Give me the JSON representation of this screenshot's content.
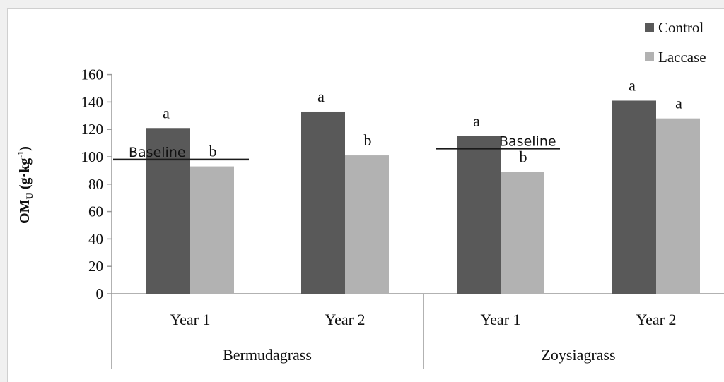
{
  "chart_data": {
    "type": "bar",
    "title": "",
    "ylabel": {
      "main": "OM",
      "sub": "U",
      "unit_open": " (g·kg",
      "unit_sup": "-1",
      "unit_close": ")"
    },
    "ylim": [
      0,
      160
    ],
    "yticks": [
      0,
      20,
      40,
      60,
      80,
      100,
      120,
      140,
      160
    ],
    "grid": false,
    "legend_position": "top-right",
    "groups": [
      {
        "label": "Bermudagrass",
        "categories": [
          "Year 1",
          "Year 2"
        ],
        "baseline": {
          "label": "Baseline",
          "value": 98
        }
      },
      {
        "label": "Zoysiagrass",
        "categories": [
          "Year 1",
          "Year 2"
        ],
        "baseline": {
          "label": "Baseline",
          "value": 106
        }
      }
    ],
    "series": [
      {
        "name": "Control",
        "color": "#595959",
        "values": [
          121,
          133,
          115,
          141
        ],
        "letters": [
          "a",
          "a",
          "a",
          "a"
        ]
      },
      {
        "name": "Laccase",
        "color": "#b2b2b2",
        "values": [
          93,
          101,
          89,
          128
        ],
        "letters": [
          "b",
          "b",
          "b",
          "a"
        ]
      }
    ]
  }
}
